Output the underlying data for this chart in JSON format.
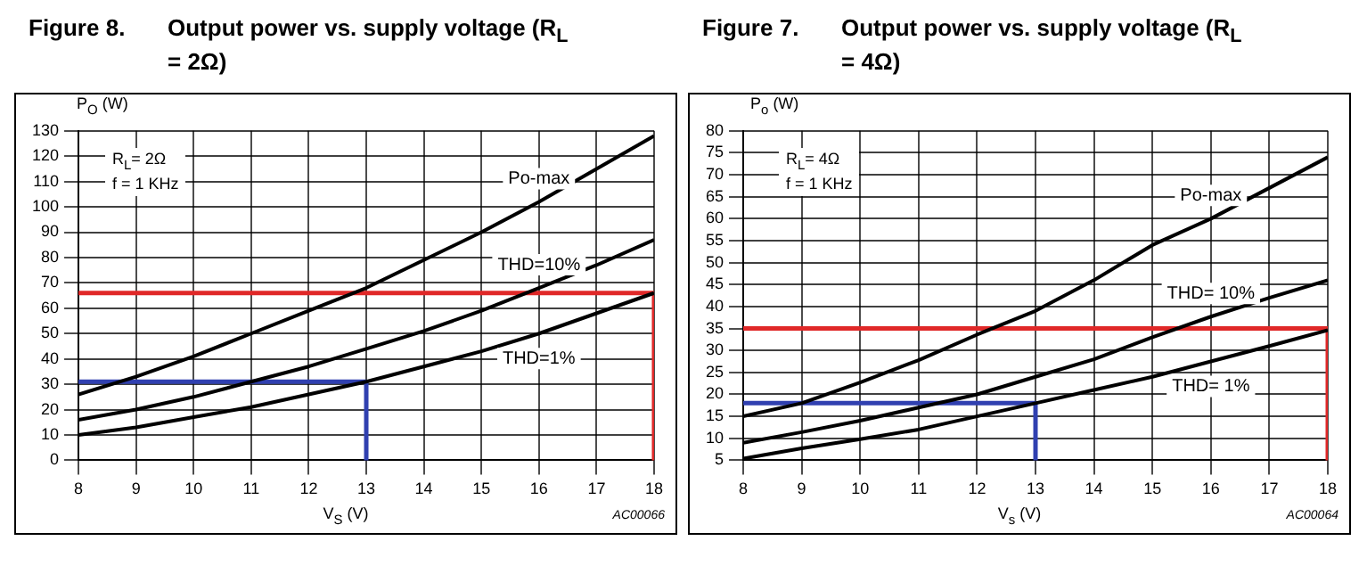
{
  "chart_data": [
    {
      "type": "line",
      "title": "Figure 8.",
      "subtitle": "Output power vs. supply voltage (R$_{L}$ = 2Ω)",
      "xlabel": "V$_{S}$ (V)",
      "ylabel": "P$_{O}$ (W)",
      "x": [
        8,
        9,
        10,
        11,
        12,
        13,
        14,
        15,
        16,
        17,
        18
      ],
      "series": [
        {
          "name": "Po-max",
          "color": "#000000",
          "values": [
            26,
            33,
            41,
            50,
            59,
            68,
            79,
            90,
            102,
            115,
            128
          ]
        },
        {
          "name": "THD=10%",
          "color": "#000000",
          "values": [
            16,
            20,
            25,
            31,
            37,
            44,
            51,
            59,
            68,
            77,
            87
          ]
        },
        {
          "name": "THD=1%",
          "color": "#000000",
          "values": [
            10,
            13,
            17,
            21,
            26,
            31,
            37,
            43,
            50,
            58,
            66
          ]
        },
        {
          "color": "#e02828",
          "x": [
            8,
            18,
            18
          ],
          "values": [
            66,
            66,
            0
          ]
        },
        {
          "color": "#3040b0",
          "x": [
            8,
            13,
            13
          ],
          "values": [
            31,
            31,
            0
          ]
        }
      ],
      "xlim": [
        8,
        18
      ],
      "xticks": [
        8,
        9,
        10,
        11,
        12,
        13,
        14,
        15,
        16,
        17,
        18
      ],
      "ylim": [
        0,
        130
      ],
      "yticks": [
        0,
        10,
        20,
        30,
        40,
        50,
        60,
        70,
        80,
        90,
        100,
        110,
        120,
        130
      ],
      "grid": true,
      "marker": "none",
      "line_style": "solid",
      "annotations": [
        "R$_{L}$= 2Ω",
        "f = 1 KHz",
        "AC00066"
      ]
    },
    {
      "type": "line",
      "title": "Figure 7.",
      "subtitle": "Output power vs. supply voltage (R$_{L}$ = 4Ω)",
      "xlabel": "V$_{s}$ (V)",
      "ylabel": "P$_{o}$ (W)",
      "x": [
        8,
        9,
        10,
        11,
        12,
        13,
        14,
        15,
        16,
        17,
        18
      ],
      "series": [
        {
          "name": "Po-max",
          "color": "#000000",
          "values": [
            15,
            18,
            22.7,
            27.8,
            33.6,
            39,
            46,
            54,
            60,
            67,
            74
          ]
        },
        {
          "name": "THD= 10%",
          "color": "#000000",
          "values": [
            9,
            11.4,
            14,
            17,
            20,
            24,
            28,
            33,
            37.7,
            42,
            46
          ]
        },
        {
          "name": "THD= 1%",
          "color": "#000000",
          "values": [
            5.4,
            7.7,
            9.8,
            12,
            15,
            18,
            21,
            24,
            27.5,
            31,
            34.6
          ]
        },
        {
          "color": "#e02828",
          "x": [
            8,
            18,
            18
          ],
          "values": [
            35,
            35,
            5
          ]
        },
        {
          "color": "#3040b0",
          "x": [
            8,
            13,
            13
          ],
          "values": [
            18,
            18,
            5
          ]
        }
      ],
      "xlim": [
        8,
        18
      ],
      "xticks": [
        8,
        9,
        10,
        11,
        12,
        13,
        14,
        15,
        16,
        17,
        18
      ],
      "ylim": [
        5,
        80
      ],
      "yticks": [
        5,
        10,
        15,
        20,
        25,
        30,
        35,
        40,
        45,
        50,
        55,
        60,
        65,
        70,
        75,
        80
      ],
      "grid": true,
      "marker": "none",
      "line_style": "solid",
      "annotations": [
        "R$_{L}$= 4Ω",
        "f = 1 KHz",
        "AC00064"
      ]
    }
  ]
}
